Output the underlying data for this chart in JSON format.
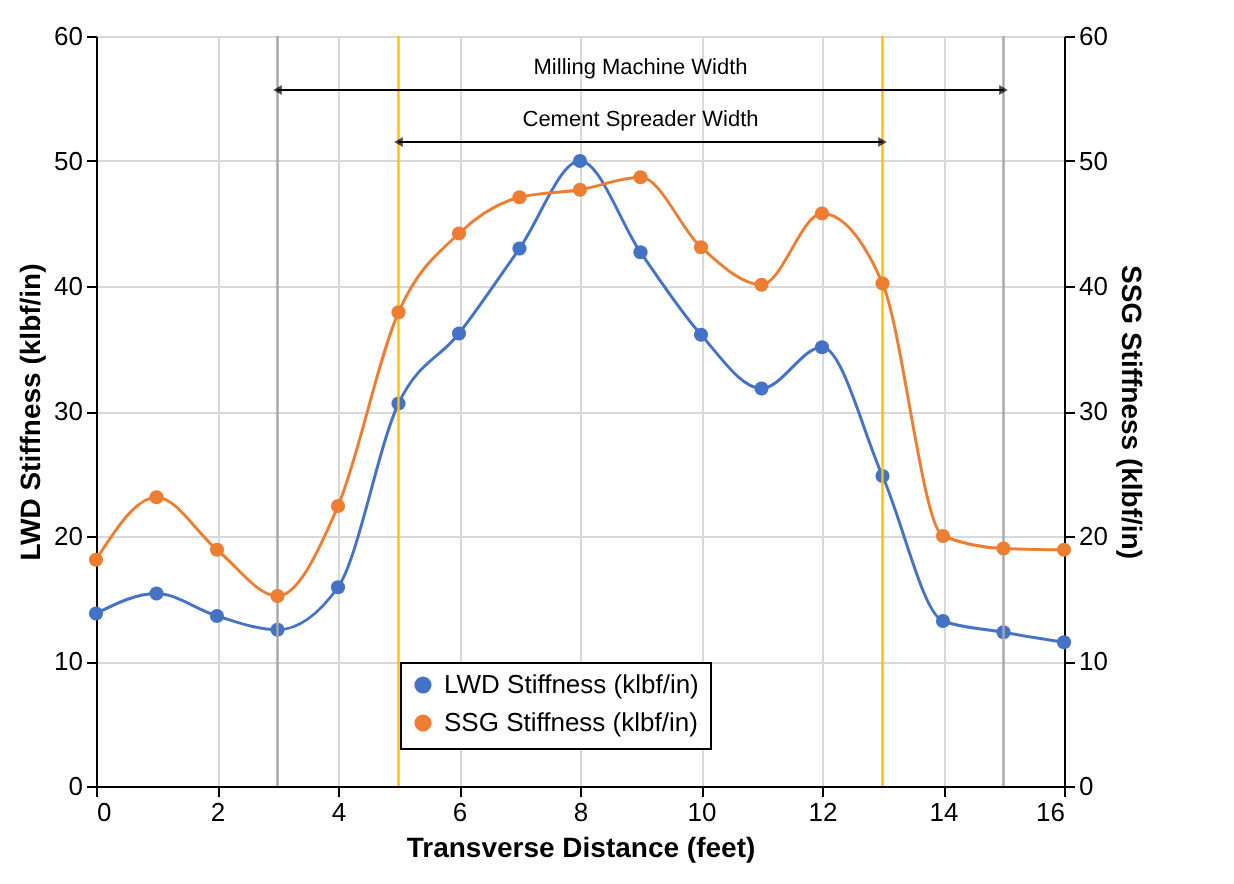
{
  "chart_data": {
    "type": "line",
    "xlabel": "Transverse Distance (feet)",
    "ylabel": "LWD Stiffness (klbf/in)",
    "y2label": "SSG Stiffness (klbf/in)",
    "x": [
      0,
      1,
      2,
      3,
      4,
      5,
      6,
      7,
      8,
      9,
      10,
      11,
      12,
      13,
      14,
      15,
      16
    ],
    "series": [
      {
        "name": "LWD Stiffness (klbf/in)",
        "color": "#4472c4",
        "values": [
          13.8,
          15.4,
          13.6,
          12.5,
          15.9,
          30.6,
          36.2,
          43,
          50,
          42.7,
          36.1,
          31.8,
          35.1,
          24.8,
          13.2,
          12.3,
          11.5
        ]
      },
      {
        "name": "SSG Stiffness (klbf/in)",
        "color": "#ed7d31",
        "axis": "y2",
        "values": [
          18.1,
          23.1,
          18.9,
          15.2,
          22.4,
          37.9,
          44.2,
          47.1,
          47.7,
          48.7,
          43.1,
          40.1,
          45.8,
          40.2,
          20,
          19,
          18.9
        ]
      }
    ],
    "xlim": [
      0,
      16
    ],
    "xticks": [
      0,
      2,
      4,
      6,
      8,
      10,
      12,
      14,
      16
    ],
    "ylim": [
      0,
      60
    ],
    "yticks": [
      0,
      10,
      20,
      30,
      40,
      50,
      60
    ],
    "y2lim": [
      0,
      60
    ],
    "y2ticks": [
      0,
      10,
      20,
      30,
      40,
      50,
      60
    ],
    "ref_lines": [
      {
        "axis": "x",
        "value": 3,
        "color": "#a6a6a6"
      },
      {
        "axis": "x",
        "value": 15,
        "color": "#a6a6a6"
      },
      {
        "axis": "x",
        "value": 5,
        "color": "#ffc000"
      },
      {
        "axis": "x",
        "value": 13,
        "color": "#ffc000"
      }
    ],
    "annotations": [
      "Milling Machine Width",
      "Cement Spreader Width"
    ],
    "grid": true,
    "legend": "bottom",
    "marker": "circle",
    "line_style": "solid"
  }
}
